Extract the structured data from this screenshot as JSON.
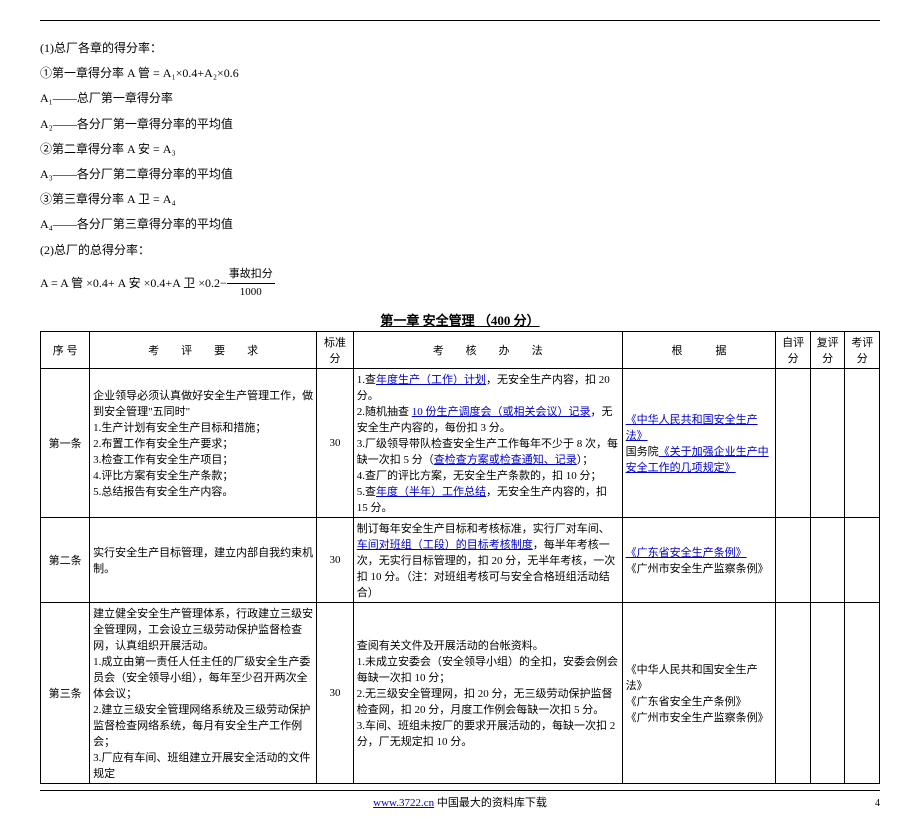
{
  "formulas": {
    "line1": "(1)总厂各章的得分率：",
    "line2": "①第一章得分率  A 管 = A₁×0.4+A₂×0.6",
    "line3": "A₁——总厂第一章得分率",
    "line4": "A₂——各分厂第一章得分率的平均值",
    "line5": "②第二章得分率  A 安 = A₃",
    "line6": "A₃——各分厂第二章得分率的平均值",
    "line7": "③第三章得分率  A 卫 = A₄",
    "line8": "A₄——各分厂第三章得分率的平均值",
    "line9": "(2)总厂的总得分率：",
    "line10_prefix": "A = A 管 ×0.4+ A 安 ×0.4+A 卫 ×0.2−",
    "frac_num": "事故扣分",
    "frac_den": "1000"
  },
  "chapter": {
    "title": "第一章  安全管理",
    "score": "（400 分）"
  },
  "headers": {
    "seq": "序 号",
    "req": "考　　评　　要　　求",
    "std": "标准分",
    "method": "考　　核　　办　　法",
    "basis": "根　　　据",
    "self": "自评分",
    "review": "复评分",
    "final": "考评分"
  },
  "rows": [
    {
      "seq": "第一条",
      "req_plain1": "企业领导必须认真做好安全生产管理工作，做到安全管理\"五同时\"",
      "req_list": "1.生产计划有安全生产目标和措施；\n2.布置工作有安全生产要求；\n3.检查工作有安全生产项目；\n4.评比方案有安全生产条款；\n5.总结报告有安全生产内容。",
      "std": "30",
      "m1a": "1.查",
      "m1b": "年度生产（工作）计划",
      "m1c": "，无安全生产内容，扣 20 分。",
      "m2a": "2.随机抽查 ",
      "m2b": "10 份生产调度会（或相关会议）记录",
      "m2c": "，无安全生产内容的，每份扣 3 分。",
      "m3a": "3.厂级领导带队检查安全生产工作每年不少于 8 次，每缺一次扣 5 分（",
      "m3b": "查检查方案或检查通知、记录",
      "m3c": "）；",
      "m4": "4.查厂的评比方案，无安全生产条款的，扣 10 分；",
      "m5a": "5.查",
      "m5b": "年度（半年）工作总结",
      "m5c": "，无安全生产内容的，扣 15 分。",
      "b1": "《中华人民共和国安全生产法》",
      "b2a": "国务院",
      "b2b": "《关于加强企业生产中安全工作的几项规定》"
    },
    {
      "seq": "第二条",
      "req": "实行安全生产目标管理，建立内部自我约束机制。",
      "std": "30",
      "m1a": "制订每年安全生产目标和考核标准，实行厂对车间、",
      "m1b": "车间对班组（工段）的目标考核制度",
      "m1c": "，每半年考核一次，无实行目标管理的，扣 20 分，无半年考核，一次扣 10 分。（注：对班组考核可与安全合格班组活动结合）",
      "b1": "《广东省安全生产条例》",
      "b2": "《广州市安全生产监察条例》"
    },
    {
      "seq": "第三条",
      "req": "建立健全安全生产管理体系，行政建立三级安全管理网，工会设立三级劳动保护监督检查网，认真组织开展活动。\n1.成立由第一责任人任主任的厂级安全生产委员会（安全领导小组），每年至少召开两次全体会议；\n2.建立三级安全管理网络系统及三级劳动保护监督检查网络系统，每月有安全生产工作例会；\n3.厂应有车间、班组建立开展安全活动的文件规定",
      "std": "30",
      "m1": "查阅有关文件及开展活动的台帐资料。\n1.未成立安委会（安全领导小组）的全扣，安委会例会每缺一次扣 10 分；\n2.无三级安全管理网，扣 20 分，无三级劳动保护监督检查网，扣 20 分，月度工作例会每缺一次扣 5 分。\n3.车间、班组未按厂的要求开展活动的，每缺一次扣 2 分，厂无规定扣 10 分。",
      "b1": "《中华人民共和国安全生产法》",
      "b2": "《广东省安全生产条例》",
      "b3": "《广州市安全生产监察条例》"
    }
  ],
  "footer": {
    "url": "www.3722.cn",
    "text": " 中国最大的资料库下载",
    "page": "4"
  }
}
